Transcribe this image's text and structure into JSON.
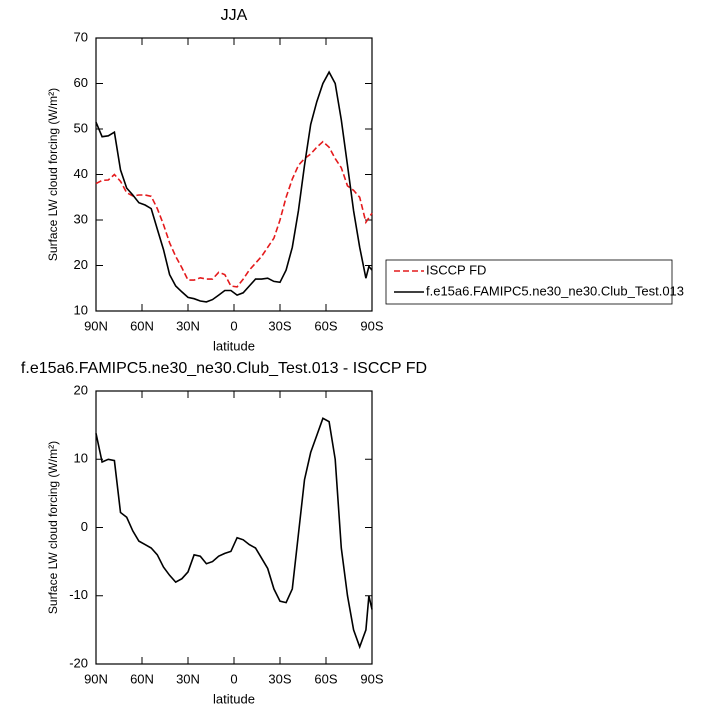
{
  "chart_data": [
    {
      "type": "line",
      "title": "JJA",
      "xlabel": "latitude",
      "ylabel": "Surface LW cloud forcing (W/m²)",
      "x": [
        90,
        86,
        82,
        78,
        74,
        70,
        66,
        62,
        58,
        54,
        50,
        46,
        42,
        38,
        34,
        30,
        26,
        22,
        18,
        14,
        10,
        6,
        2,
        -2,
        -6,
        -10,
        -14,
        -18,
        -22,
        -26,
        -30,
        -34,
        -38,
        -42,
        -46,
        -50,
        -54,
        -58,
        -62,
        -66,
        -70,
        -74,
        -78,
        -82,
        -86,
        -88,
        -90
      ],
      "series": [
        {
          "name": "ISCCP FD",
          "color": "#e41a1c",
          "dash": true,
          "values": [
            38,
            38.7,
            38.8,
            40,
            38.5,
            36,
            35.3,
            35.5,
            35.5,
            35.2,
            32.5,
            29,
            25,
            22,
            19.5,
            16.8,
            16.8,
            17.3,
            17,
            17,
            18.5,
            18,
            15.5,
            15.3,
            17,
            19,
            20.5,
            22,
            24,
            26,
            30,
            35,
            39,
            42,
            43.5,
            44.5,
            46,
            47.2,
            46,
            43.5,
            41.5,
            37.5,
            36.5,
            35,
            29.5,
            30.5,
            31.5
          ]
        },
        {
          "name": "f.e15a6.FAMIPC5.ne30_ne30.Club_Test.013",
          "color": "#000000",
          "dash": false,
          "values": [
            51.5,
            48.3,
            48.5,
            49.3,
            41,
            37,
            35.5,
            33.8,
            33.3,
            32.5,
            28,
            23.5,
            18,
            15.5,
            14.2,
            13,
            12.7,
            12.2,
            12,
            12.5,
            13.5,
            14.5,
            14.5,
            13.5,
            14,
            15.5,
            17,
            17,
            17.2,
            16.5,
            16.3,
            19,
            24,
            32,
            42,
            51,
            56,
            60,
            62.5,
            60,
            52,
            42,
            32,
            24,
            17.2,
            19.8,
            19
          ]
        }
      ],
      "xlim": [
        90,
        -90
      ],
      "xticks": [
        {
          "value": 90,
          "label": "90N"
        },
        {
          "value": 60,
          "label": "60N"
        },
        {
          "value": 30,
          "label": "30N"
        },
        0,
        {
          "value": -30,
          "label": "30S"
        },
        {
          "value": -60,
          "label": "60S"
        },
        {
          "value": -90,
          "label": "90S"
        }
      ],
      "ylim": [
        10,
        70
      ],
      "yticks": [
        10,
        20,
        30,
        40,
        50,
        60,
        70
      ],
      "legend": "right"
    },
    {
      "type": "line",
      "title": "f.e15a6.FAMIPC5.ne30_ne30.Club_Test.013 - ISCCP FD",
      "xlabel": "latitude",
      "ylabel": "Surface LW cloud forcing (W/m²)",
      "x": [
        90,
        86,
        82,
        78,
        74,
        70,
        66,
        62,
        58,
        54,
        50,
        46,
        42,
        38,
        34,
        30,
        26,
        22,
        18,
        14,
        10,
        6,
        2,
        -2,
        -6,
        -10,
        -14,
        -18,
        -22,
        -26,
        -30,
        -34,
        -38,
        -42,
        -46,
        -50,
        -54,
        -58,
        -62,
        -66,
        -70,
        -74,
        -78,
        -82,
        -86,
        -88,
        -90
      ],
      "values": [
        13.8,
        9.6,
        10,
        9.8,
        2.2,
        1.5,
        -0.5,
        -2,
        -2.5,
        -3,
        -4,
        -5.8,
        -7,
        -8,
        -7.5,
        -6.5,
        -4,
        -4.2,
        -5.3,
        -5,
        -4.2,
        -3.8,
        -3.5,
        -1.5,
        -1.8,
        -2.5,
        -3,
        -4.5,
        -6,
        -9,
        -10.8,
        -11,
        -9,
        -1,
        7,
        11,
        13.5,
        16,
        15.5,
        10,
        -3,
        -10,
        -15,
        -17.5,
        -15,
        -10,
        -12
      ],
      "color": "#000000",
      "xlim": [
        90,
        -90
      ],
      "xticks": [
        {
          "value": 90,
          "label": "90N"
        },
        {
          "value": 60,
          "label": "60N"
        },
        {
          "value": 30,
          "label": "30N"
        },
        0,
        {
          "value": -30,
          "label": "30S"
        },
        {
          "value": -60,
          "label": "60S"
        },
        {
          "value": -90,
          "label": "90S"
        }
      ],
      "ylim": [
        -20,
        20
      ],
      "yticks": [
        -20,
        -10,
        0,
        10,
        20
      ]
    }
  ]
}
